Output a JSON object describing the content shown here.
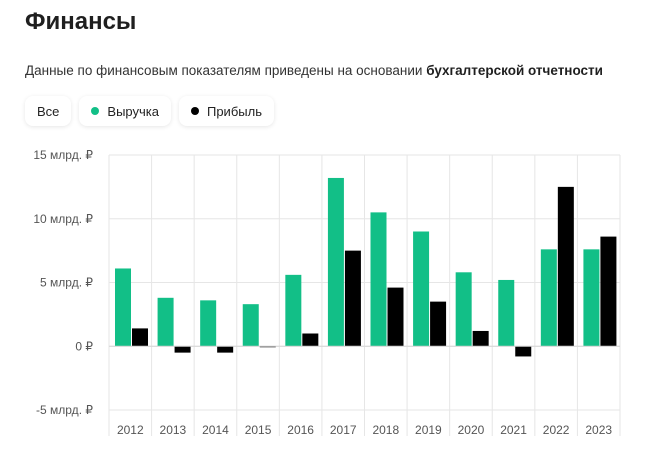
{
  "header": {
    "title": "Финансы",
    "subtitle_prefix": "Данные по финансовым показателям приведены на основании ",
    "subtitle_bold": "бухгалтерской отчетности"
  },
  "filters": [
    {
      "label": "Все",
      "dot": null
    },
    {
      "label": "Выручка",
      "dot": "#12bf87"
    },
    {
      "label": "Прибыль",
      "dot": "#000000"
    }
  ],
  "colors": {
    "revenue": "#12bf87",
    "profit": "#000000",
    "grid": "#e6e6e6"
  },
  "chart_data": {
    "type": "bar",
    "categories": [
      "2012",
      "2013",
      "2014",
      "2015",
      "2016",
      "2017",
      "2018",
      "2019",
      "2020",
      "2021",
      "2022",
      "2023"
    ],
    "series": [
      {
        "name": "Выручка",
        "values": [
          6.1,
          3.8,
          3.6,
          3.3,
          5.6,
          13.2,
          10.5,
          9.0,
          5.8,
          5.2,
          7.6,
          7.6
        ]
      },
      {
        "name": "Прибыль",
        "values": [
          1.4,
          -0.5,
          -0.5,
          -0.05,
          1.0,
          7.5,
          4.6,
          3.5,
          1.2,
          -0.8,
          12.5,
          8.6
        ]
      }
    ],
    "ylim": [
      -5,
      15
    ],
    "yticks": [
      15,
      10,
      5,
      0,
      -5
    ],
    "ytick_labels": [
      "15 млрд. ₽",
      "10 млрд. ₽",
      "5 млрд. ₽",
      "0 ₽",
      "-5 млрд. ₽"
    ],
    "grid": true
  }
}
